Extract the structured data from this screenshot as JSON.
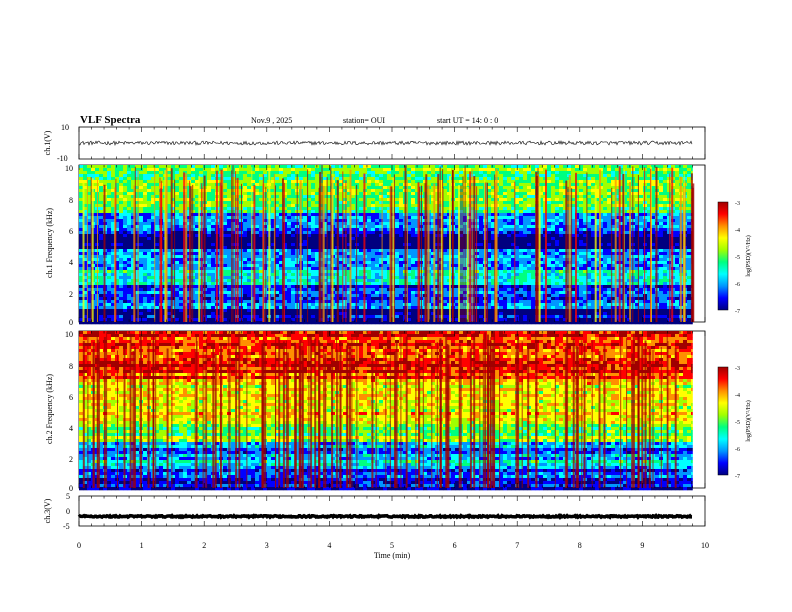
{
  "header": {
    "title": "VLF Spectra",
    "date": "Nov.9 , 2025",
    "station": "station= OUI",
    "start": "start UT = 14: 0 : 0"
  },
  "colorbar": {
    "ticks": [
      "-3",
      "-4",
      "-5",
      "-6",
      "-7"
    ],
    "label": "log(PSD)(V²/Hz)",
    "colors": [
      "#000080",
      "#0000ff",
      "#0096ff",
      "#00ffff",
      "#00ff80",
      "#a0ff00",
      "#ffff00",
      "#ff9000",
      "#ff0000",
      "#a00000"
    ]
  },
  "chart_data": [
    {
      "type": "line",
      "id": "ch1-waveform",
      "ylabel": "ch.1(V)",
      "ylim": [
        -10,
        10
      ],
      "yticks": [
        "10",
        "-10"
      ],
      "xlim": [
        0,
        9.8
      ],
      "mean_value": 0,
      "amplitude": 1.2
    },
    {
      "type": "heatmap",
      "id": "ch1-spectrogram",
      "ylabel": "ch.1 Frequency (kHz)",
      "ylim": [
        0,
        10
      ],
      "yticks": [
        "10",
        "8",
        "6",
        "4",
        "2",
        "0"
      ],
      "xlim": [
        0,
        9.8
      ],
      "clim": [
        -7,
        -3
      ],
      "bands": [
        {
          "f0": 0,
          "f1": 0.4,
          "level": -6.5
        },
        {
          "f0": 0.4,
          "f1": 0.8,
          "level": -6.9
        },
        {
          "f0": 0.8,
          "f1": 1.6,
          "level": -6.1
        },
        {
          "f0": 1.6,
          "f1": 2.4,
          "level": -6.3
        },
        {
          "f0": 2.4,
          "f1": 3.4,
          "level": -5.4
        },
        {
          "f0": 3.4,
          "f1": 4.6,
          "level": -6.0
        },
        {
          "f0": 4.6,
          "f1": 5.6,
          "level": -6.8
        },
        {
          "f0": 5.6,
          "f1": 7.0,
          "level": -6.2
        },
        {
          "f0": 7.0,
          "f1": 10,
          "level": -5.0
        }
      ]
    },
    {
      "type": "heatmap",
      "id": "ch2-spectrogram",
      "ylabel": "ch.2 Frequency (kHz)",
      "ylim": [
        0,
        10
      ],
      "yticks": [
        "10",
        "8",
        "6",
        "4",
        "2",
        "0"
      ],
      "xlim": [
        0,
        9.8
      ],
      "clim": [
        -7,
        -3
      ],
      "bands": [
        {
          "f0": 0,
          "f1": 1.2,
          "level": -6.3
        },
        {
          "f0": 1.2,
          "f1": 2.0,
          "level": -5.7
        },
        {
          "f0": 2.0,
          "f1": 3.0,
          "level": -6.0
        },
        {
          "f0": 3.0,
          "f1": 4.0,
          "level": -4.9
        },
        {
          "f0": 4.0,
          "f1": 7.0,
          "level": -4.4
        },
        {
          "f0": 7.0,
          "f1": 10,
          "level": -3.7
        }
      ]
    },
    {
      "type": "line",
      "id": "ch3-waveform",
      "ylabel": "ch.3(V)",
      "ylim": [
        -5,
        5
      ],
      "yticks": [
        "5",
        "0",
        "-5"
      ],
      "xlim": [
        0,
        9.8
      ],
      "mean_value": -1.8,
      "amplitude": 0.25
    }
  ],
  "xaxis": {
    "label": "Time (min)",
    "range": [
      0,
      10
    ],
    "ticks": [
      "0",
      "1",
      "2",
      "3",
      "4",
      "5",
      "6",
      "7",
      "8",
      "9",
      "10"
    ]
  }
}
